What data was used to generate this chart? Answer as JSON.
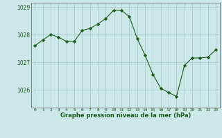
{
  "x": [
    0,
    1,
    2,
    3,
    4,
    5,
    6,
    7,
    8,
    9,
    10,
    11,
    12,
    13,
    14,
    15,
    16,
    17,
    18,
    19,
    20,
    21,
    22,
    23
  ],
  "y": [
    1027.6,
    1027.8,
    1028.0,
    1027.9,
    1027.75,
    1027.75,
    1028.15,
    1028.22,
    1028.38,
    1028.58,
    1028.88,
    1028.87,
    1028.65,
    1027.85,
    1027.25,
    1026.55,
    1026.05,
    1025.9,
    1025.75,
    1026.88,
    1027.15,
    1027.15,
    1027.18,
    1027.45
  ],
  "line_color": "#1a5c1a",
  "marker_color": "#1a5c1a",
  "bg_color": "#cce8e8",
  "grid_color": "#aacccc",
  "xlabel": "Graphe pression niveau de la mer (hPa)",
  "xlabel_color": "#1a5c1a",
  "tick_color": "#1a5c1a",
  "ylim": [
    1025.35,
    1029.15
  ],
  "yticks": [
    1026,
    1027,
    1028,
    1029
  ],
  "xlim": [
    -0.5,
    23.5
  ],
  "xticks": [
    0,
    1,
    2,
    3,
    4,
    5,
    6,
    7,
    8,
    9,
    10,
    11,
    12,
    13,
    14,
    15,
    16,
    17,
    18,
    19,
    20,
    21,
    22,
    23
  ]
}
